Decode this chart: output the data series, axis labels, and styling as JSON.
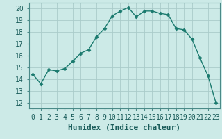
{
  "x": [
    0,
    1,
    2,
    3,
    4,
    5,
    6,
    7,
    8,
    9,
    10,
    11,
    12,
    13,
    14,
    15,
    16,
    17,
    18,
    19,
    20,
    21,
    22,
    23
  ],
  "y": [
    14.4,
    13.6,
    14.8,
    14.7,
    14.9,
    15.5,
    16.2,
    16.5,
    17.6,
    18.3,
    19.4,
    19.8,
    20.1,
    19.3,
    19.8,
    19.8,
    19.6,
    19.5,
    18.3,
    18.2,
    17.4,
    15.8,
    14.3,
    12.0
  ],
  "line_color": "#1a7a6e",
  "marker": "D",
  "marker_size": 2.5,
  "bg_color": "#cceae7",
  "grid_color": "#aaccca",
  "xlabel": "Humidex (Indice chaleur)",
  "xlim": [
    -0.5,
    23.5
  ],
  "ylim": [
    11.5,
    20.5
  ],
  "yticks": [
    12,
    13,
    14,
    15,
    16,
    17,
    18,
    19,
    20
  ],
  "xticks": [
    0,
    1,
    2,
    3,
    4,
    5,
    6,
    7,
    8,
    9,
    10,
    11,
    12,
    13,
    14,
    15,
    16,
    17,
    18,
    19,
    20,
    21,
    22,
    23
  ],
  "xlabel_fontsize": 8,
  "tick_fontsize": 7
}
